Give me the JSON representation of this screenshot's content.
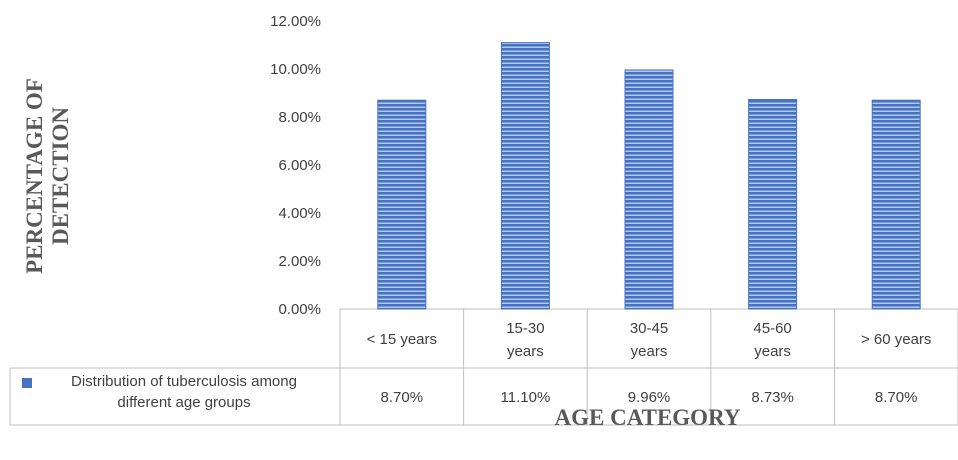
{
  "chart_data": {
    "type": "bar",
    "categories": [
      "< 15 years",
      "15-30 years",
      "30-45 years",
      "45-60 years",
      "> 60 years"
    ],
    "category_lines": [
      [
        "< 15 years"
      ],
      [
        "15-30",
        "years"
      ],
      [
        "30-45",
        "years"
      ],
      [
        "45-60",
        "years"
      ],
      [
        "> 60 years"
      ]
    ],
    "series": [
      {
        "name": "Distribution of tuberculosis among different age groups",
        "name_lines": [
          "Distribution of tuberculosis among",
          "different age groups"
        ],
        "values": [
          8.7,
          11.1,
          9.96,
          8.73,
          8.7
        ],
        "value_labels": [
          "8.70%",
          "11.10%",
          "9.96%",
          "8.73%",
          "8.70%"
        ],
        "color": "#4472c4",
        "pattern": "horizontal-stripes"
      }
    ],
    "ylim": [
      0,
      12
    ],
    "ytick_labels": [
      "0.00%",
      "2.00%",
      "4.00%",
      "6.00%",
      "8.00%",
      "10.00%",
      "12.00%"
    ],
    "ylabel": "PERCENTAGE OF DETECTION",
    "ylabel_lines": [
      "PERCENTAGE OF",
      "DETECTION"
    ],
    "xlabel": "AGE CATEGORY",
    "grid": false,
    "legend": "data-table",
    "colors": {
      "bar": "#4472c4",
      "stripe": "#ffffff",
      "axis": "#bfbfbf",
      "text": "#404040",
      "title": "#595959"
    }
  }
}
